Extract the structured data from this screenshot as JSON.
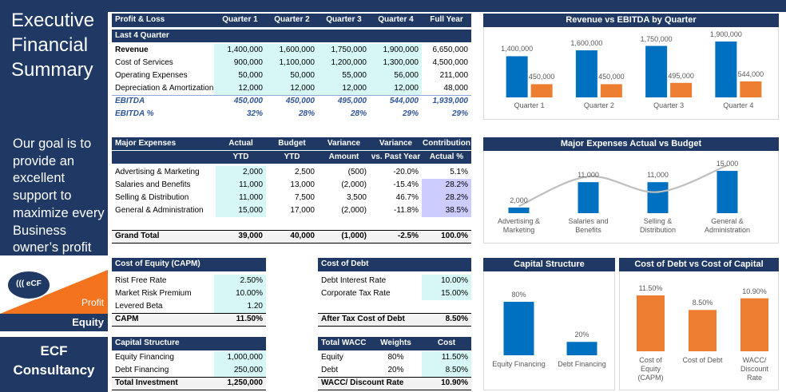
{
  "sidebar": {
    "title": "Executive Financial Summary",
    "tagline": "Our goal is to provide an excellent support to maximize every Business owner’s profit",
    "logo": {
      "mark": "((( eCF",
      "profit": "Profit",
      "equity": "Equity"
    },
    "company": "ECF Consultancy"
  },
  "profit_loss": {
    "header": [
      "Profit & Loss",
      "Quarter 1",
      "Quarter 2",
      "Quarter 3",
      "Quarter 4",
      "Full Year"
    ],
    "subheader": "Last 4 Quarter",
    "rows": [
      [
        "Revenue",
        "1,400,000",
        "1,600,000",
        "1,750,000",
        "1,900,000",
        "6,650,000"
      ],
      [
        "Cost of Services",
        "900,000",
        "1,100,000",
        "1,200,000",
        "1,300,000",
        "4,500,000"
      ],
      [
        "Operating Expenses",
        "50,000",
        "50,000",
        "55,000",
        "56,000",
        "211,000"
      ],
      [
        "Depreciation & Amortization",
        "12,000",
        "12,000",
        "12,000",
        "12,000",
        "48,000"
      ],
      [
        "EBITDA",
        "450,000",
        "450,000",
        "495,000",
        "544,000",
        "1,939,000"
      ],
      [
        "EBITDA %",
        "32%",
        "28%",
        "28%",
        "29%",
        "29%"
      ]
    ]
  },
  "major_expenses": {
    "header": [
      "Major Expenses",
      "Actual",
      "Budget",
      "Variance",
      "Variance",
      "Contribution"
    ],
    "subheader": [
      "YTD",
      "YTD",
      "Amount",
      "vs. Past Year",
      "Actual %"
    ],
    "rows": [
      [
        "Advertising & Marketing",
        "2,000",
        "2,500",
        "(500)",
        "-20.0%",
        "5.1%"
      ],
      [
        "Salaries and Benefits",
        "11,000",
        "13,000",
        "(2,000)",
        "-15.4%",
        "28.2%"
      ],
      [
        "Selling & Distribution",
        "11,000",
        "7,500",
        "3,500",
        "46.7%",
        "28.2%"
      ],
      [
        "General & Administration",
        "15,000",
        "17,000",
        "(2,000)",
        "-11.8%",
        "38.5%"
      ]
    ],
    "total": [
      "Grand Total",
      "39,000",
      "40,000",
      "(1,000)",
      "-2.5%",
      "100.0%"
    ]
  },
  "cost_of_equity": {
    "title": "Cost of Equity (CAPM)",
    "rows": [
      [
        "Rist Free Rate",
        "2.50%"
      ],
      [
        "Market Risk Premium",
        "10.00%"
      ],
      [
        "Levered Beta",
        "1.20"
      ]
    ],
    "total": [
      "CAPM",
      "11.50%"
    ]
  },
  "cost_of_debt": {
    "title": "Cost of Debt",
    "rows": [
      [
        "Debt Interest Rate",
        "10.00%"
      ],
      [
        "Corporate Tax Rate",
        "15.00%"
      ]
    ],
    "total": [
      "After Tax Cost of Debt",
      "8.50%"
    ]
  },
  "capital_structure": {
    "title": "Capital Structure",
    "rows": [
      [
        "Equity Financing",
        "1,000,000"
      ],
      [
        "Debt Financing",
        "250,000"
      ]
    ],
    "total": [
      "Total Investment",
      "1,250,000"
    ]
  },
  "wacc": {
    "header": [
      "Total WACC",
      "Weights",
      "Cost"
    ],
    "rows": [
      [
        "Equity",
        "80%",
        "11.50%"
      ],
      [
        "Debt",
        "20%",
        "8.50%"
      ]
    ],
    "total": [
      "WACC/ Discount Rate",
      "10.90%"
    ]
  },
  "chart_data": [
    {
      "type": "bar",
      "title": "Revenue vs EBITDA by Quarter",
      "categories": [
        "Quarter 1",
        "Quarter 2",
        "Quarter 3",
        "Quarter 4"
      ],
      "series": [
        {
          "color": "#0070c0",
          "values": [
            1400000,
            1600000,
            1750000,
            1900000
          ],
          "value_labels": [
            "1,400,000",
            "1,600,000",
            "1,750,000",
            "1,900,000"
          ]
        },
        {
          "color": "#ed7d31",
          "values": [
            450000,
            450000,
            495000,
            544000
          ],
          "value_labels": [
            "450,000",
            "450,000",
            "495,000",
            "544,000"
          ]
        }
      ]
    },
    {
      "type": "bar",
      "title": "Major Expenses Actual vs Budget",
      "categories": [
        "Advertising & Marketing",
        "Salaries and Benefits",
        "Selling & Distribution",
        "General & Administration"
      ],
      "series": [
        {
          "color": "#0070c0",
          "values": [
            2000,
            11000,
            11000,
            15000
          ],
          "value_labels": [
            "2,000",
            "11,000",
            "11,000",
            "15,000"
          ]
        },
        {
          "type": "line",
          "color": "#bfbfbf",
          "values": [
            2500,
            13000,
            7500,
            17000
          ]
        }
      ]
    },
    {
      "type": "bar",
      "title": "Capital Structure",
      "categories": [
        "Equity Financing",
        "Debt Financing"
      ],
      "series": [
        {
          "color": "#0070c0",
          "values": [
            80,
            20
          ],
          "value_labels": [
            "80%",
            "20%"
          ]
        }
      ]
    },
    {
      "type": "bar",
      "title": "Cost of Debt vs Cost of Capital",
      "categories": [
        "Cost of Equity (CAPM)",
        "Cost of Debt",
        "WACC/ Discount Rate"
      ],
      "series": [
        {
          "color": "#ed7d31",
          "values": [
            11.5,
            8.5,
            10.9
          ],
          "value_labels": [
            "11.50%",
            "8.50%",
            "10.90%"
          ]
        }
      ]
    }
  ]
}
